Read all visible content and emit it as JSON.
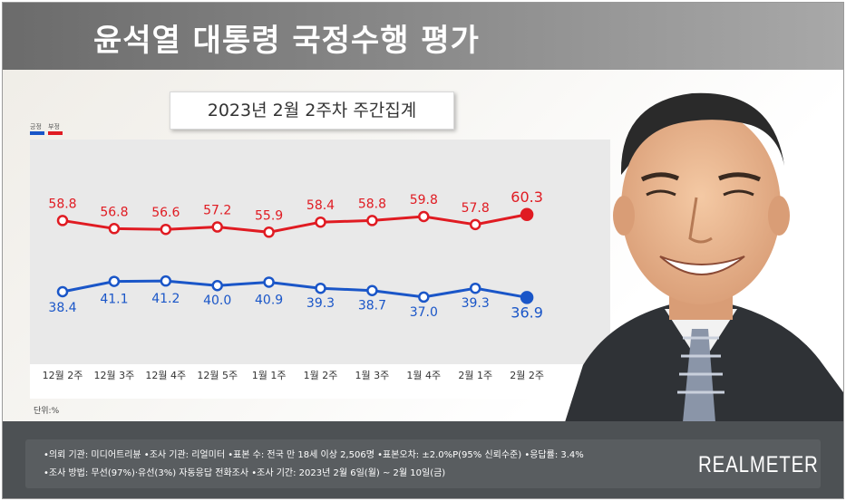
{
  "header": {
    "title": "윤석열 대통령 국정수행 평가"
  },
  "subtitle": "2023년 2월 2주차 주간집계",
  "legend": {
    "approve": "긍정",
    "disapprove": "부정"
  },
  "unit_label": "단위:%",
  "colors": {
    "approve": "#1a56c8",
    "disapprove": "#e01b22",
    "plot_bg": "#e9e9e9",
    "footer_bg": "#4d5154"
  },
  "chart_data": {
    "type": "line",
    "categories": [
      "12월 2주",
      "12월 3주",
      "12월 4주",
      "12월 5주",
      "1월 1주",
      "1월 2주",
      "1월 3주",
      "1월 4주",
      "2월 1주",
      "2월 2주"
    ],
    "series": [
      {
        "name": "부정",
        "key": "disapprove",
        "values": [
          58.8,
          56.8,
          56.6,
          57.2,
          55.9,
          58.4,
          58.8,
          59.8,
          57.8,
          60.3
        ]
      },
      {
        "name": "긍정",
        "key": "approve",
        "values": [
          38.4,
          41.1,
          41.2,
          40.0,
          40.9,
          39.3,
          38.7,
          37.0,
          39.3,
          36.9
        ]
      }
    ],
    "value_labels": {
      "disapprove": [
        "58.8",
        "56.8",
        "56.6",
        "57.2",
        "55.9",
        "58.4",
        "58.8",
        "59.8",
        "57.8",
        "60.3"
      ],
      "approve": [
        "38.4",
        "41.1",
        "41.2",
        "40.0",
        "40.9",
        "39.3",
        "38.7",
        "37.0",
        "39.3",
        "36.9"
      ]
    },
    "title": "",
    "grid": false
  },
  "footer": {
    "note1": "•의뢰 기관: 미디어트리뷴 •조사 기관: 리얼미터 •표본 수: 전국 만 18세 이상 2,506명 •표본오차: ±2.0%P(95% 신뢰수준) •응답률: 3.4%",
    "note2": "•조사 방법: 무선(97%)·유선(3%) 자동응답 전화조사 •조사 기간: 2023년 2월 6일(월) ~ 2월 10일(금)",
    "brand": "REALMETER"
  }
}
